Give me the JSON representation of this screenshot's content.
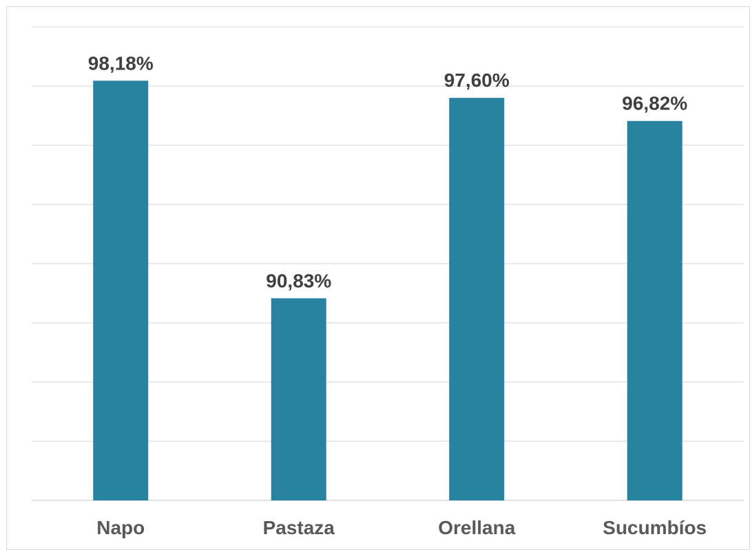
{
  "chart_data": {
    "type": "bar",
    "categories": [
      "Napo",
      "Pastaza",
      "Orellana",
      "Sucumbíos"
    ],
    "values": [
      98.18,
      90.83,
      97.6,
      96.82
    ],
    "data_labels": [
      "98,18%",
      "90,83%",
      "97,60%",
      "96,82%"
    ],
    "title": "",
    "xlabel": "",
    "ylabel": "",
    "ylim": [
      84,
      100
    ],
    "grid": true,
    "gridline_step": 2,
    "legend": "none",
    "bar_color": "#2a82a1"
  }
}
